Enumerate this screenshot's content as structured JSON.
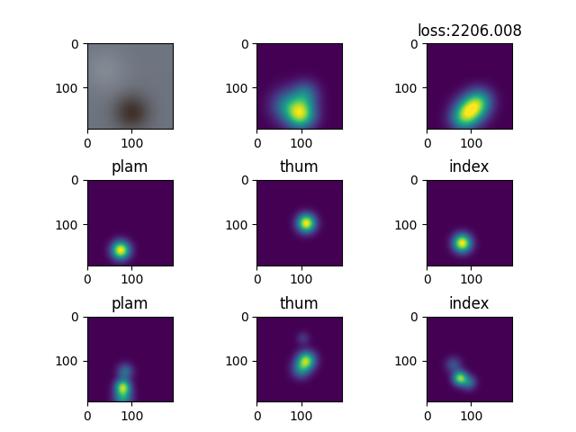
{
  "chart_data": [
    {
      "type": "image",
      "xlim": [
        0,
        192
      ],
      "ylim": [
        192,
        0
      ],
      "xticks": [
        0,
        100
      ],
      "yticks": [
        0,
        100
      ],
      "color": "#6e7480",
      "blobs": [
        {
          "x": 100,
          "y": 155,
          "sigma": 28,
          "peak": 0.9,
          "color": "#3a2a22"
        },
        {
          "x": 40,
          "y": 60,
          "sigma": 35,
          "peak": 0.5,
          "color": "#9aa0a8"
        }
      ]
    },
    {
      "type": "heatmap",
      "xlim": [
        0,
        192
      ],
      "ylim": [
        192,
        0
      ],
      "xticks": [
        0,
        100
      ],
      "yticks": [
        0,
        100
      ],
      "color_range": [
        0,
        1
      ],
      "blobs": [
        {
          "x": 100,
          "y": 160,
          "sigma": 22,
          "peak": 0.8
        },
        {
          "x": 70,
          "y": 140,
          "sigma": 25,
          "peak": 0.4
        },
        {
          "x": 110,
          "y": 115,
          "sigma": 20,
          "peak": 0.35
        }
      ]
    },
    {
      "type": "heatmap",
      "title": "loss:2206.008",
      "xlim": [
        0,
        192
      ],
      "ylim": [
        192,
        0
      ],
      "xticks": [
        0,
        100
      ],
      "yticks": [
        0,
        100
      ],
      "color_range": [
        0,
        1
      ],
      "blobs": [
        {
          "x": 100,
          "y": 150,
          "sigma": 22,
          "peak": 0.75
        },
        {
          "x": 80,
          "y": 170,
          "sigma": 20,
          "peak": 0.45
        },
        {
          "x": 120,
          "y": 130,
          "sigma": 20,
          "peak": 0.45
        }
      ]
    },
    {
      "type": "heatmap",
      "title": "plam",
      "xlim": [
        0,
        192
      ],
      "ylim": [
        192,
        0
      ],
      "xticks": [
        0,
        100
      ],
      "yticks": [
        0,
        100
      ],
      "color_range": [
        0,
        1
      ],
      "blobs": [
        {
          "x": 75,
          "y": 158,
          "sigma": 14,
          "peak": 1.0
        }
      ]
    },
    {
      "type": "heatmap",
      "title": "thum",
      "xlim": [
        0,
        192
      ],
      "ylim": [
        192,
        0
      ],
      "xticks": [
        0,
        100
      ],
      "yticks": [
        0,
        100
      ],
      "color_range": [
        0,
        1
      ],
      "blobs": [
        {
          "x": 112,
          "y": 97,
          "sigma": 14,
          "peak": 1.0
        }
      ]
    },
    {
      "type": "heatmap",
      "title": "index",
      "xlim": [
        0,
        192
      ],
      "ylim": [
        192,
        0
      ],
      "xticks": [
        0,
        100
      ],
      "yticks": [
        0,
        100
      ],
      "color_range": [
        0,
        1
      ],
      "blobs": [
        {
          "x": 80,
          "y": 142,
          "sigma": 14,
          "peak": 1.0
        }
      ]
    },
    {
      "type": "heatmap",
      "title": "plam",
      "xlim": [
        0,
        192
      ],
      "ylim": [
        192,
        0
      ],
      "xticks": [
        0,
        100
      ],
      "yticks": [
        0,
        100
      ],
      "color_range": [
        0,
        1
      ],
      "blobs": [
        {
          "x": 80,
          "y": 160,
          "sigma": 12,
          "peak": 0.8
        },
        {
          "x": 80,
          "y": 185,
          "sigma": 14,
          "peak": 0.5
        },
        {
          "x": 85,
          "y": 125,
          "sigma": 12,
          "peak": 0.35
        }
      ]
    },
    {
      "type": "heatmap",
      "title": "thum",
      "xlim": [
        0,
        192
      ],
      "ylim": [
        192,
        0
      ],
      "xticks": [
        0,
        100
      ],
      "yticks": [
        0,
        100
      ],
      "color_range": [
        0,
        1
      ],
      "blobs": [
        {
          "x": 112,
          "y": 100,
          "sigma": 14,
          "peak": 0.8
        },
        {
          "x": 100,
          "y": 120,
          "sigma": 14,
          "peak": 0.4
        },
        {
          "x": 105,
          "y": 50,
          "sigma": 10,
          "peak": 0.15
        }
      ]
    },
    {
      "type": "heatmap",
      "title": "index",
      "xlim": [
        0,
        192
      ],
      "ylim": [
        192,
        0
      ],
      "xticks": [
        0,
        100
      ],
      "yticks": [
        0,
        100
      ],
      "color_range": [
        0,
        1
      ],
      "blobs": [
        {
          "x": 75,
          "y": 140,
          "sigma": 11,
          "peak": 0.8
        },
        {
          "x": 95,
          "y": 150,
          "sigma": 11,
          "peak": 0.35
        },
        {
          "x": 60,
          "y": 110,
          "sigma": 12,
          "peak": 0.25
        }
      ]
    }
  ]
}
